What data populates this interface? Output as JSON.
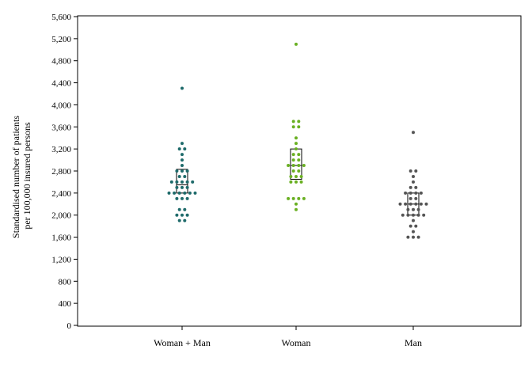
{
  "chart_data": {
    "type": "scatter",
    "title": "",
    "xlabel": "",
    "ylabel_lines": [
      "Standardised number of patients",
      "per 100,000 insured persons"
    ],
    "ylim": [
      0,
      5600
    ],
    "yticks": [
      0,
      400,
      800,
      1200,
      1600,
      2000,
      2400,
      2800,
      3200,
      3600,
      4000,
      4400,
      4800,
      5200,
      5600
    ],
    "ytick_labels": [
      "0",
      "400",
      "800",
      "1,200",
      "1,600",
      "2,000",
      "2,400",
      "2,800",
      "3,200",
      "3,600",
      "4,000",
      "4,400",
      "4,800",
      "5,200",
      "5,600"
    ],
    "categories": [
      "Woman + Man",
      "Woman",
      "Man"
    ],
    "grid": false,
    "series": [
      {
        "color": "#1f6b6b",
        "values": [
          1900,
          1900,
          2000,
          2000,
          2000,
          2100,
          2100,
          2300,
          2300,
          2300,
          2400,
          2400,
          2400,
          2400,
          2400,
          2400,
          2500,
          2500,
          2500,
          2600,
          2600,
          2600,
          2600,
          2600,
          2700,
          2700,
          2800,
          2800,
          2800,
          2900,
          3000,
          3100,
          3200,
          3200,
          3300,
          4300
        ],
        "box": {
          "q1": 2400,
          "median": 2550,
          "q3": 2830
        }
      },
      {
        "color": "#6ab023",
        "values": [
          2100,
          2200,
          2300,
          2300,
          2300,
          2300,
          2600,
          2600,
          2600,
          2700,
          2700,
          2700,
          2800,
          2800,
          2900,
          2900,
          2900,
          2900,
          3000,
          3000,
          3100,
          3100,
          3200,
          3300,
          3400,
          3600,
          3600,
          3700,
          3700,
          5100
        ],
        "box": {
          "q1": 2650,
          "median": 2900,
          "q3": 3200
        }
      },
      {
        "color": "#555555",
        "values": [
          1600,
          1600,
          1600,
          1700,
          1800,
          1800,
          1900,
          2000,
          2000,
          2000,
          2000,
          2000,
          2100,
          2100,
          2100,
          2200,
          2200,
          2200,
          2200,
          2200,
          2200,
          2300,
          2300,
          2400,
          2400,
          2400,
          2400,
          2500,
          2500,
          2600,
          2700,
          2800,
          2800,
          3500
        ],
        "box": {
          "q1": 2000,
          "median": 2200,
          "q3": 2400
        }
      }
    ]
  }
}
